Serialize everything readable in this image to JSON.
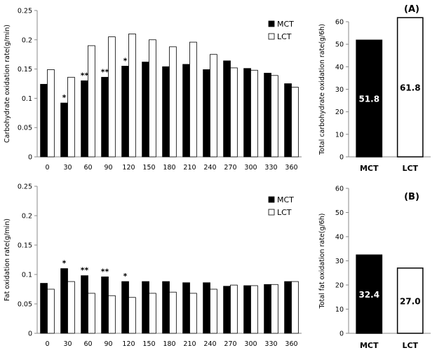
{
  "chart_data": [
    {
      "id": "carb-timecourse",
      "type": "bar",
      "ylabel": "Carbohydrate oxidation rate(g/min)",
      "ylim": [
        0,
        0.25
      ],
      "yticks": [
        "0",
        "0.05",
        "0.1",
        "0.15",
        "0.2",
        "0.25"
      ],
      "categories": [
        "0",
        "30",
        "60",
        "90",
        "120",
        "150",
        "180",
        "210",
        "240",
        "270",
        "300",
        "330",
        "360"
      ],
      "series": [
        {
          "name": "MCT",
          "color": "#000000",
          "values": [
            0.124,
            0.092,
            0.13,
            0.136,
            0.155,
            0.162,
            0.154,
            0.158,
            0.149,
            0.164,
            0.151,
            0.143,
            0.125
          ]
        },
        {
          "name": "LCT",
          "color": "#ffffff",
          "values": [
            0.149,
            0.136,
            0.19,
            0.205,
            0.21,
            0.2,
            0.188,
            0.196,
            0.175,
            0.152,
            0.148,
            0.139,
            0.119
          ]
        }
      ],
      "annotations": [
        "",
        "*",
        "**",
        "**",
        "*",
        "",
        "",
        "",
        "",
        "",
        "",
        "",
        ""
      ],
      "legend": "top-right"
    },
    {
      "id": "carb-total",
      "type": "bar",
      "panel_label": "(A)",
      "ylabel": "Total carbohydrate oxidation rate(g/6h)",
      "ylim": [
        0,
        60
      ],
      "yticks": [
        "0",
        "10",
        "20",
        "30",
        "40",
        "50",
        "60"
      ],
      "categories": [
        "MCT",
        "LCT"
      ],
      "values": [
        51.8,
        61.8
      ],
      "value_labels": [
        "51.8",
        "61.8"
      ],
      "colors": [
        "#000000",
        "#ffffff"
      ]
    },
    {
      "id": "fat-timecourse",
      "type": "bar",
      "ylabel": "Fat oxidation rate(g/min)",
      "ylim": [
        0,
        0.25
      ],
      "yticks": [
        "0",
        "0.05",
        "0.1",
        "0.15",
        "0.2",
        "0.25"
      ],
      "categories": [
        "0",
        "30",
        "60",
        "90",
        "120",
        "150",
        "180",
        "210",
        "240",
        "270",
        "300",
        "330",
        "360"
      ],
      "series": [
        {
          "name": "MCT",
          "color": "#000000",
          "values": [
            0.085,
            0.11,
            0.098,
            0.096,
            0.088,
            0.088,
            0.088,
            0.086,
            0.086,
            0.08,
            0.081,
            0.083,
            0.088
          ]
        },
        {
          "name": "LCT",
          "color": "#ffffff",
          "values": [
            0.075,
            0.088,
            0.068,
            0.064,
            0.061,
            0.068,
            0.07,
            0.068,
            0.075,
            0.082,
            0.081,
            0.083,
            0.088
          ]
        }
      ],
      "annotations": [
        "",
        "*",
        "**",
        "**",
        "*",
        "",
        "",
        "",
        "",
        "",
        "",
        "",
        ""
      ],
      "legend": "top-right"
    },
    {
      "id": "fat-total",
      "type": "bar",
      "panel_label": "(B)",
      "ylabel": "Total fat oxidation rate(g/6h)",
      "ylim": [
        0,
        60
      ],
      "yticks": [
        "0",
        "10",
        "20",
        "30",
        "40",
        "50",
        "60"
      ],
      "categories": [
        "MCT",
        "LCT"
      ],
      "values": [
        32.4,
        27.0
      ],
      "value_labels": [
        "32.4",
        "27.0"
      ],
      "colors": [
        "#000000",
        "#ffffff"
      ]
    }
  ]
}
